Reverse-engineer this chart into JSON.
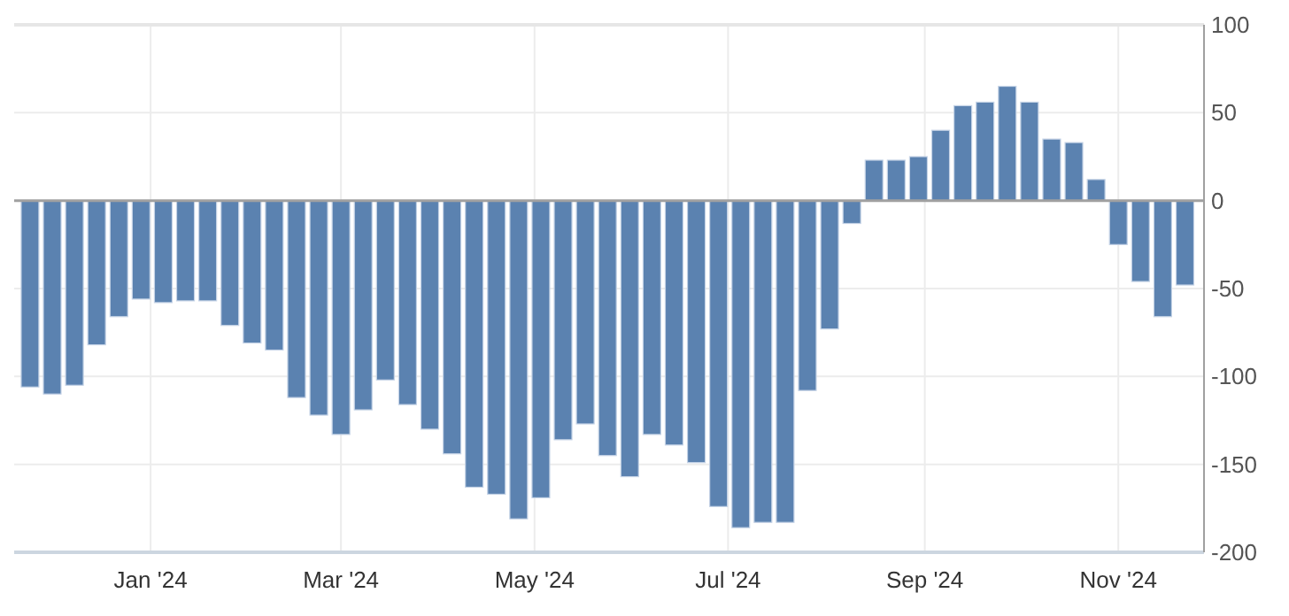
{
  "chart_data": {
    "type": "bar",
    "color": "#5b82b0",
    "x": [
      "2023-11-24",
      "2023-12-01",
      "2023-12-08",
      "2023-12-15",
      "2023-12-22",
      "2023-12-29",
      "2024-01-05",
      "2024-01-12",
      "2024-01-19",
      "2024-01-26",
      "2024-02-02",
      "2024-02-09",
      "2024-02-16",
      "2024-02-23",
      "2024-03-01",
      "2024-03-08",
      "2024-03-15",
      "2024-03-22",
      "2024-03-29",
      "2024-04-05",
      "2024-04-12",
      "2024-04-19",
      "2024-04-26",
      "2024-05-03",
      "2024-05-10",
      "2024-05-17",
      "2024-05-24",
      "2024-05-31",
      "2024-06-07",
      "2024-06-14",
      "2024-06-21",
      "2024-06-28",
      "2024-07-05",
      "2024-07-12",
      "2024-07-19",
      "2024-07-26",
      "2024-08-02",
      "2024-08-09",
      "2024-08-16",
      "2024-08-23",
      "2024-08-30",
      "2024-09-06",
      "2024-09-13",
      "2024-09-20",
      "2024-09-27",
      "2024-10-04",
      "2024-10-11",
      "2024-10-18",
      "2024-10-25",
      "2024-11-01",
      "2024-11-08",
      "2024-11-15",
      "2024-11-22"
    ],
    "values": [
      -106,
      -110,
      -105,
      -82,
      -66,
      -56,
      -58,
      -57,
      -57,
      -71,
      -81,
      -85,
      -112,
      -122,
      -133,
      -119,
      -102,
      -116,
      -130,
      -144,
      -163,
      -167,
      -181,
      -169,
      -136,
      -127,
      -145,
      -157,
      -133,
      -139,
      -149,
      -174,
      -186,
      -183,
      -183,
      -108,
      -73,
      -13,
      23,
      23,
      25,
      40,
      54,
      56,
      65,
      56,
      35,
      33,
      12,
      -25,
      -46,
      -66,
      -48
    ],
    "xlim": [
      "2023-11-19",
      "2024-11-28"
    ],
    "xticks": [
      {
        "value": "2024-01-01",
        "label": "Jan '24"
      },
      {
        "value": "2024-03-01",
        "label": "Mar '24"
      },
      {
        "value": "2024-05-01",
        "label": "May '24"
      },
      {
        "value": "2024-07-01",
        "label": "Jul '24"
      },
      {
        "value": "2024-09-01",
        "label": "Sep '24"
      },
      {
        "value": "2024-11-01",
        "label": "Nov '24"
      }
    ],
    "ylim": [
      -200,
      100
    ],
    "yticks": [
      -200,
      -150,
      -100,
      -50,
      0,
      50,
      100
    ],
    "grid": true
  }
}
